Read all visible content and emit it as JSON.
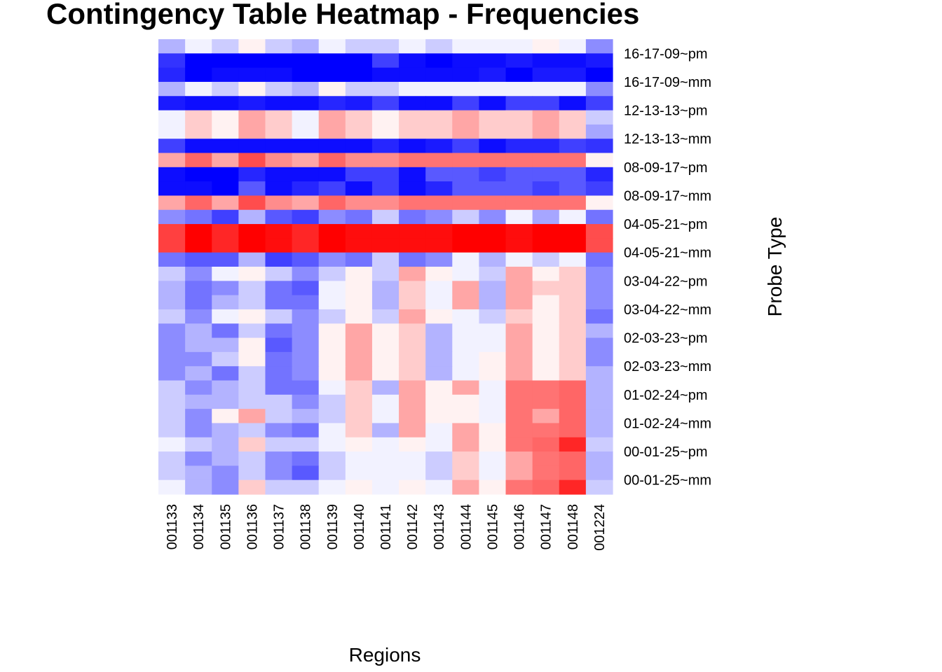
{
  "chart_data": {
    "type": "heatmap",
    "title": "Contingency Table Heatmap - Frequencies",
    "xlabel": "Regions",
    "ylabel": "Probe Type",
    "x_categories": [
      "001133",
      "001134",
      "001135",
      "001136",
      "001137",
      "001138",
      "001139",
      "001140",
      "001141",
      "001142",
      "001143",
      "001144",
      "001145",
      "001146",
      "001147",
      "001148",
      "001224"
    ],
    "y_tick_labels": [
      "16-17-09~pm",
      "16-17-09~mm",
      "12-13-13~pm",
      "12-13-13~mm",
      "08-09-17~pm",
      "08-09-17~mm",
      "04-05-21~pm",
      "04-05-21~mm",
      "03-04-22~pm",
      "03-04-22~mm",
      "02-03-23~pm",
      "02-03-23~mm",
      "01-02-24~pm",
      "01-02-24~mm",
      "00-01-25~pm",
      "00-01-25~mm"
    ],
    "row_count": 32,
    "color_scale": {
      "low": "#0000ff",
      "mid": "#ffffff",
      "high": "#ff0000",
      "range": [
        -1,
        1
      ]
    },
    "grid": false,
    "legend": "none",
    "values": [
      [
        -0.3,
        -0.05,
        -0.2,
        0.05,
        -0.2,
        -0.3,
        -0.05,
        -0.2,
        -0.2,
        -0.05,
        -0.2,
        -0.05,
        -0.05,
        -0.05,
        0.05,
        -0.05,
        -0.45
      ],
      [
        -0.8,
        -1,
        -1,
        -1,
        -1,
        -1,
        -1,
        -1,
        -0.75,
        -0.95,
        -1,
        -0.95,
        -0.95,
        -0.9,
        -0.95,
        -0.95,
        -0.9
      ],
      [
        -0.85,
        -1,
        -0.95,
        -0.95,
        -0.95,
        -1,
        -1,
        -1,
        -0.95,
        -0.95,
        -0.95,
        -0.95,
        -0.9,
        -1,
        -0.9,
        -0.9,
        -1
      ],
      [
        -0.3,
        -0.05,
        -0.2,
        0.05,
        -0.2,
        -0.3,
        0.05,
        -0.2,
        -0.2,
        -0.05,
        -0.05,
        -0.05,
        -0.05,
        -0.05,
        -0.05,
        -0.05,
        -0.45
      ],
      [
        -0.9,
        -0.95,
        -0.95,
        -0.9,
        -0.95,
        -0.95,
        -0.85,
        -0.9,
        -0.75,
        -0.95,
        -0.95,
        -0.75,
        -0.95,
        -0.75,
        -0.75,
        -0.95,
        -0.75
      ],
      [
        -0.05,
        0.2,
        0.05,
        0.35,
        0.2,
        -0.05,
        0.35,
        0.2,
        0.05,
        0.2,
        0.2,
        0.35,
        0.2,
        0.2,
        0.35,
        0.2,
        -0.2
      ],
      [
        -0.05,
        0.2,
        0.05,
        0.35,
        0.2,
        -0.05,
        0.35,
        0.2,
        0.05,
        0.2,
        0.2,
        0.35,
        0.2,
        0.2,
        0.35,
        0.2,
        -0.35
      ],
      [
        -0.75,
        -0.95,
        -0.95,
        -0.95,
        -0.95,
        -0.95,
        -0.95,
        -0.95,
        -0.85,
        -0.95,
        -0.9,
        -0.75,
        -0.95,
        -0.85,
        -0.85,
        -0.75,
        -0.8
      ],
      [
        0.35,
        0.6,
        0.35,
        0.7,
        0.45,
        0.35,
        0.6,
        0.45,
        0.45,
        0.55,
        0.55,
        0.55,
        0.55,
        0.55,
        0.55,
        0.55,
        0.05
      ],
      [
        -0.95,
        -1,
        -1,
        -0.85,
        -0.95,
        -0.95,
        -0.95,
        -0.75,
        -0.75,
        -0.95,
        -0.65,
        -0.65,
        -0.75,
        -0.65,
        -0.65,
        -0.65,
        -0.85
      ],
      [
        -0.95,
        -0.95,
        -1,
        -0.65,
        -0.95,
        -0.85,
        -0.75,
        -0.95,
        -0.75,
        -0.95,
        -0.85,
        -0.65,
        -0.65,
        -0.65,
        -0.75,
        -0.65,
        -0.75
      ],
      [
        0.35,
        0.6,
        0.35,
        0.7,
        0.45,
        0.35,
        0.6,
        0.45,
        0.45,
        0.55,
        0.55,
        0.55,
        0.55,
        0.55,
        0.55,
        0.55,
        0.05
      ],
      [
        -0.45,
        -0.55,
        -0.75,
        -0.3,
        -0.65,
        -0.75,
        -0.45,
        -0.55,
        -0.2,
        -0.55,
        -0.45,
        -0.2,
        -0.45,
        -0.05,
        -0.35,
        -0.05,
        -0.55
      ],
      [
        0.75,
        1,
        0.85,
        1,
        0.95,
        0.85,
        1,
        0.95,
        0.95,
        0.95,
        0.95,
        1,
        1,
        0.95,
        1,
        1,
        0.7
      ],
      [
        0.75,
        1,
        0.85,
        1,
        0.95,
        0.85,
        1,
        0.95,
        0.95,
        0.95,
        0.95,
        1,
        1,
        0.95,
        1,
        1,
        0.7
      ],
      [
        -0.55,
        -0.65,
        -0.65,
        -0.3,
        -0.75,
        -0.65,
        -0.45,
        -0.55,
        -0.2,
        -0.55,
        -0.45,
        -0.05,
        -0.3,
        -0.05,
        -0.2,
        -0.05,
        -0.55
      ],
      [
        -0.2,
        -0.45,
        -0.05,
        0.05,
        -0.2,
        -0.45,
        -0.2,
        0.05,
        -0.2,
        0.35,
        0.05,
        -0.05,
        -0.2,
        0.35,
        0.05,
        0.2,
        -0.45
      ],
      [
        -0.3,
        -0.55,
        -0.45,
        -0.2,
        -0.55,
        -0.65,
        -0.05,
        0.05,
        -0.3,
        0.2,
        -0.05,
        0.35,
        -0.3,
        0.35,
        0.2,
        0.2,
        -0.45
      ],
      [
        -0.3,
        -0.55,
        -0.3,
        -0.2,
        -0.55,
        -0.55,
        -0.05,
        0.05,
        -0.3,
        0.2,
        -0.05,
        0.35,
        -0.3,
        0.35,
        0.05,
        0.2,
        -0.45
      ],
      [
        -0.2,
        -0.45,
        -0.05,
        0.05,
        -0.2,
        -0.45,
        -0.2,
        0.05,
        -0.2,
        0.35,
        0.05,
        -0.05,
        -0.2,
        0.2,
        0.05,
        0.2,
        -0.55
      ],
      [
        -0.45,
        -0.3,
        -0.55,
        -0.2,
        -0.55,
        -0.45,
        0.05,
        0.35,
        0.05,
        0.2,
        -0.3,
        -0.05,
        -0.05,
        0.35,
        0.05,
        0.2,
        -0.3
      ],
      [
        -0.45,
        -0.3,
        -0.3,
        0.05,
        -0.65,
        -0.45,
        0.05,
        0.35,
        0.05,
        0.2,
        -0.3,
        -0.05,
        -0.05,
        0.35,
        0.05,
        0.2,
        -0.45
      ],
      [
        -0.45,
        -0.45,
        -0.2,
        0.05,
        -0.55,
        -0.45,
        0.05,
        0.35,
        0.05,
        0.2,
        -0.3,
        -0.05,
        0.05,
        0.35,
        0.05,
        0.2,
        -0.45
      ],
      [
        -0.45,
        -0.3,
        -0.55,
        -0.2,
        -0.55,
        -0.45,
        0.05,
        0.35,
        0.05,
        0.2,
        -0.3,
        -0.05,
        0.05,
        0.35,
        0.05,
        0.2,
        -0.3
      ],
      [
        -0.2,
        -0.45,
        -0.3,
        -0.2,
        -0.55,
        -0.55,
        -0.05,
        0.2,
        -0.3,
        0.35,
        0.05,
        0.35,
        -0.05,
        0.55,
        0.55,
        0.6,
        -0.3
      ],
      [
        -0.2,
        -0.3,
        -0.3,
        -0.2,
        -0.2,
        -0.45,
        -0.2,
        0.2,
        -0.05,
        0.35,
        0.05,
        0.05,
        -0.05,
        0.55,
        0.55,
        0.6,
        -0.3
      ],
      [
        -0.2,
        -0.45,
        0.05,
        0.35,
        -0.2,
        -0.3,
        -0.2,
        0.2,
        -0.05,
        0.35,
        0.05,
        0.05,
        -0.05,
        0.55,
        0.35,
        0.6,
        -0.3
      ],
      [
        -0.2,
        -0.45,
        -0.3,
        -0.2,
        -0.45,
        -0.55,
        -0.05,
        0.2,
        -0.3,
        0.35,
        -0.05,
        0.35,
        0.05,
        0.55,
        0.55,
        0.6,
        -0.3
      ],
      [
        -0.05,
        -0.2,
        -0.3,
        0.2,
        -0.2,
        -0.2,
        -0.05,
        0.05,
        -0.05,
        0.05,
        -0.05,
        0.35,
        0.05,
        0.55,
        0.6,
        0.85,
        -0.2
      ],
      [
        -0.2,
        -0.45,
        -0.3,
        -0.2,
        -0.45,
        -0.55,
        -0.2,
        -0.05,
        -0.05,
        -0.05,
        -0.2,
        0.2,
        -0.05,
        0.35,
        0.55,
        0.6,
        -0.3
      ],
      [
        -0.2,
        -0.3,
        -0.45,
        -0.2,
        -0.45,
        -0.65,
        -0.2,
        -0.05,
        -0.05,
        -0.05,
        -0.2,
        0.2,
        -0.05,
        0.35,
        0.55,
        0.6,
        -0.3
      ],
      [
        -0.05,
        -0.3,
        -0.45,
        0.2,
        -0.2,
        -0.2,
        -0.05,
        0.05,
        -0.05,
        0.05,
        -0.05,
        0.35,
        0.05,
        0.55,
        0.6,
        0.85,
        -0.2
      ]
    ]
  }
}
